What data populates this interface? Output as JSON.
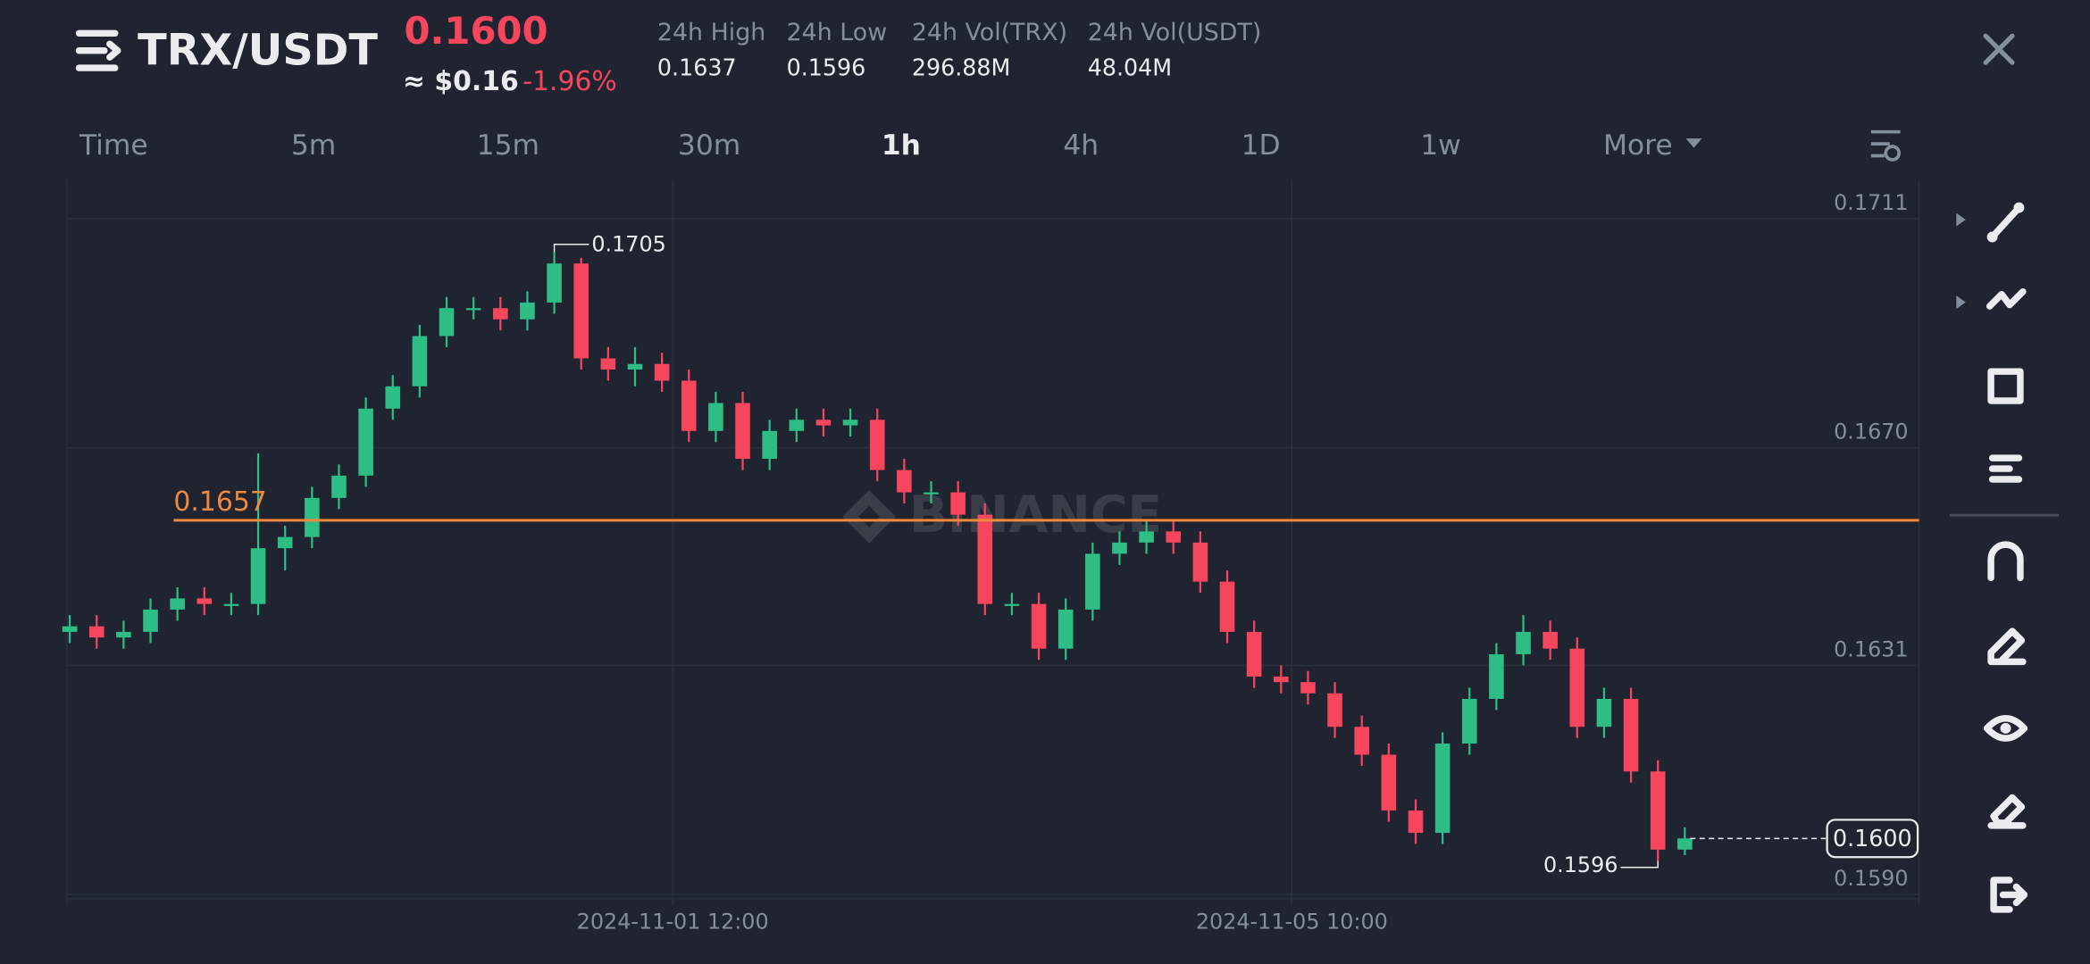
{
  "header": {
    "pair": "TRX/USDT",
    "price": "0.1600",
    "price_usd": "≈ $0.16",
    "change": "-1.96%",
    "stats": [
      {
        "label": "24h High",
        "value": "0.1637"
      },
      {
        "label": "24h Low",
        "value": "0.1596"
      },
      {
        "label": "24h Vol(TRX)",
        "value": "296.88M"
      },
      {
        "label": "24h Vol(USDT)",
        "value": "48.04M"
      }
    ]
  },
  "intervals": [
    "Time",
    "5m",
    "15m",
    "30m",
    "1h",
    "4h",
    "1D",
    "1w",
    "More"
  ],
  "active_interval": "1h",
  "watermark": "BINANCE",
  "chart_data": {
    "type": "candlestick",
    "up_color": "#2ebd85",
    "down_color": "#f6465d",
    "grid": true,
    "candles": [
      [
        0.1637,
        0.164,
        0.1635,
        0.1638
      ],
      [
        0.1638,
        0.164,
        0.1634,
        0.1636
      ],
      [
        0.1636,
        0.1639,
        0.1634,
        0.1637
      ],
      [
        0.1637,
        0.1643,
        0.1635,
        0.1641
      ],
      [
        0.1641,
        0.1645,
        0.1639,
        0.1643
      ],
      [
        0.1643,
        0.1645,
        0.164,
        0.1642
      ],
      [
        0.1642,
        0.1644,
        0.164,
        0.1642
      ],
      [
        0.1642,
        0.1669,
        0.164,
        0.1652
      ],
      [
        0.1652,
        0.1656,
        0.1648,
        0.1654
      ],
      [
        0.1654,
        0.1663,
        0.1652,
        0.1661
      ],
      [
        0.1661,
        0.1667,
        0.1659,
        0.1665
      ],
      [
        0.1665,
        0.1679,
        0.1663,
        0.1677
      ],
      [
        0.1677,
        0.1683,
        0.1675,
        0.1681
      ],
      [
        0.1681,
        0.1692,
        0.1679,
        0.169
      ],
      [
        0.169,
        0.1697,
        0.1688,
        0.1695
      ],
      [
        0.1695,
        0.1697,
        0.1693,
        0.1695
      ],
      [
        0.1695,
        0.1697,
        0.1691,
        0.1693
      ],
      [
        0.1693,
        0.1698,
        0.1691,
        0.1696
      ],
      [
        0.1696,
        0.1705,
        0.1694,
        0.1703
      ],
      [
        0.1703,
        0.1704,
        0.1684,
        0.1686
      ],
      [
        0.1686,
        0.1688,
        0.1682,
        0.1684
      ],
      [
        0.1684,
        0.1688,
        0.1681,
        0.1685
      ],
      [
        0.1685,
        0.1687,
        0.168,
        0.1682
      ],
      [
        0.1682,
        0.1684,
        0.1671,
        0.1673
      ],
      [
        0.1673,
        0.168,
        0.1671,
        0.1678
      ],
      [
        0.1678,
        0.168,
        0.1666,
        0.1668
      ],
      [
        0.1668,
        0.1675,
        0.1666,
        0.1673
      ],
      [
        0.1673,
        0.1677,
        0.1671,
        0.1675
      ],
      [
        0.1675,
        0.1677,
        0.1672,
        0.1674
      ],
      [
        0.1674,
        0.1677,
        0.1672,
        0.1675
      ],
      [
        0.1675,
        0.1677,
        0.1664,
        0.1666
      ],
      [
        0.1666,
        0.1668,
        0.166,
        0.1662
      ],
      [
        0.1662,
        0.1664,
        0.166,
        0.1662
      ],
      [
        0.1662,
        0.1664,
        0.1656,
        0.1658
      ],
      [
        0.1658,
        0.166,
        0.164,
        0.1642
      ],
      [
        0.1642,
        0.1644,
        0.164,
        0.1642
      ],
      [
        0.1642,
        0.1644,
        0.1632,
        0.1634
      ],
      [
        0.1634,
        0.1643,
        0.1632,
        0.1641
      ],
      [
        0.1641,
        0.1653,
        0.1639,
        0.1651
      ],
      [
        0.1651,
        0.1655,
        0.1649,
        0.1653
      ],
      [
        0.1653,
        0.1657,
        0.1651,
        0.1655
      ],
      [
        0.1655,
        0.1657,
        0.1651,
        0.1653
      ],
      [
        0.1653,
        0.1655,
        0.1644,
        0.1646
      ],
      [
        0.1646,
        0.1648,
        0.1635,
        0.1637
      ],
      [
        0.1637,
        0.1639,
        0.1627,
        0.1629
      ],
      [
        0.1629,
        0.1631,
        0.1626,
        0.1628
      ],
      [
        0.1628,
        0.163,
        0.1624,
        0.1626
      ],
      [
        0.1626,
        0.1628,
        0.1618,
        0.162
      ],
      [
        0.162,
        0.1622,
        0.1613,
        0.1615
      ],
      [
        0.1615,
        0.1617,
        0.1603,
        0.1605
      ],
      [
        0.1605,
        0.1607,
        0.1599,
        0.1601
      ],
      [
        0.1601,
        0.1619,
        0.1599,
        0.1617
      ],
      [
        0.1617,
        0.1627,
        0.1615,
        0.1625
      ],
      [
        0.1625,
        0.1635,
        0.1623,
        0.1633
      ],
      [
        0.1633,
        0.164,
        0.1631,
        0.1637
      ],
      [
        0.1637,
        0.1639,
        0.1632,
        0.1634
      ],
      [
        0.1634,
        0.1636,
        0.1618,
        0.162
      ],
      [
        0.162,
        0.1627,
        0.1618,
        0.1625
      ],
      [
        0.1625,
        0.1627,
        0.161,
        0.1612
      ],
      [
        0.1612,
        0.1614,
        0.1596,
        0.1598
      ],
      [
        0.1598,
        0.1602,
        0.1597,
        0.16
      ]
    ],
    "xlim": [
      -0.1,
      68.7
    ],
    "xticks": [
      {
        "value": 22.4,
        "label": "2024-11-01 12:00"
      },
      {
        "value": 45.4,
        "label": "2024-11-05 10:00"
      }
    ],
    "ylim": [
      0.1588,
      0.1718
    ],
    "yticks": [
      0.1711,
      {
        "value": 0.167,
        "label": "0.1670"
      },
      0.1631,
      {
        "value": 0.159,
        "label": "0.1590"
      }
    ],
    "price_line": {
      "value": 0.1657,
      "color": "#f0883e"
    },
    "high_label": 0.1705,
    "low_label": 0.1596,
    "last_price": {
      "value": 0.16,
      "label": "0.1600"
    }
  }
}
